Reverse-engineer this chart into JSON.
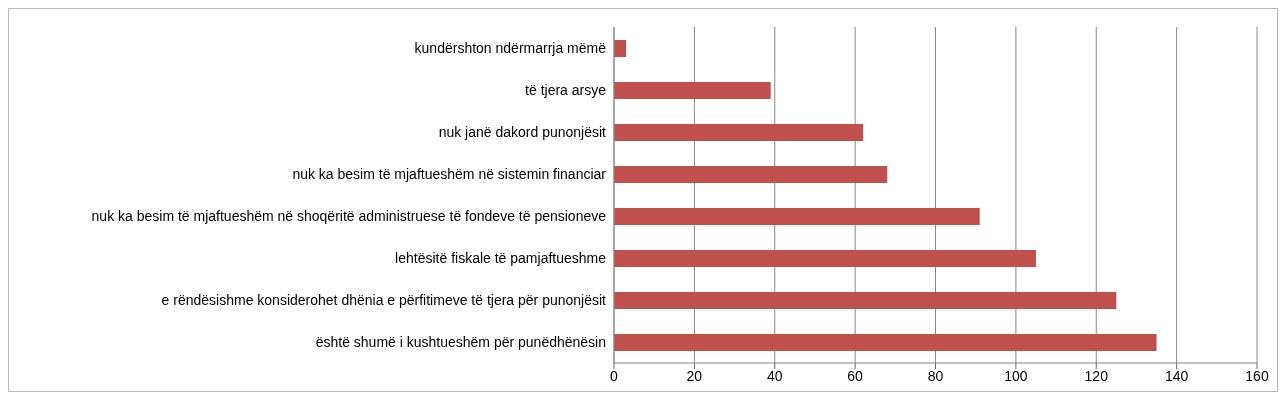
{
  "chart_data": {
    "type": "bar",
    "orientation": "horizontal",
    "categories": [
      "kundërshton ndërmarrja mëmë",
      "të tjera arsye",
      "nuk janë dakord punonjësit",
      "nuk ka besim të mjaftueshëm në sistemin financiar",
      "nuk ka besim të mjaftueshëm në shoqëritë administruese të fondeve të pensioneve",
      "lehtësitë fiskale të pamjaftueshme",
      "e rëndësishme konsiderohet dhënia e përfitimeve të tjera për punonjësit",
      "është shumë i kushtueshëm për punëdhënësin"
    ],
    "values": [
      3,
      39,
      62,
      68,
      91,
      105,
      125,
      135
    ],
    "color": "#c0504d",
    "xlim": [
      0,
      160
    ],
    "xticks": [
      0,
      20,
      40,
      60,
      80,
      100,
      120,
      140,
      160
    ],
    "grid": "x",
    "legend": false
  }
}
